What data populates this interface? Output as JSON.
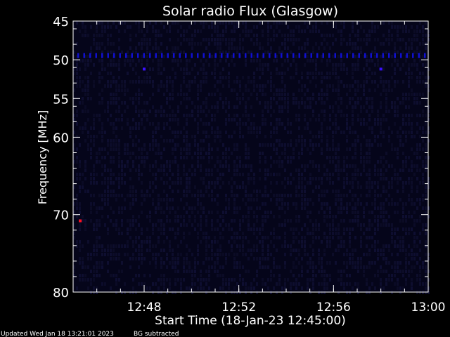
{
  "chart_data": {
    "type": "heatmap",
    "title": "Solar radio Flux (Glasgow)",
    "xlabel": "Start Time (18-Jan-23 12:45:00)",
    "ylabel": "Frequency [MHz]",
    "xlim": [
      "12:45",
      "13:00"
    ],
    "ylim": [
      45,
      80
    ],
    "y_inverted": true,
    "x_ticks": [
      "12:48",
      "12:52",
      "12:56",
      "13:00"
    ],
    "y_ticks": [
      45,
      50,
      55,
      60,
      70,
      80
    ],
    "y_tick_labels": [
      "45",
      "50",
      "55",
      "60",
      "70",
      "80"
    ],
    "background_color": "#05051a",
    "features": [
      {
        "kind": "periodic-band",
        "frequency": 49.5,
        "time_start": "12:45",
        "time_end": "13:00",
        "color": "#1010d0"
      },
      {
        "kind": "spot",
        "time": "12:48",
        "frequency": 51.2,
        "color": "#3a10ff"
      },
      {
        "kind": "spot",
        "time": "12:58",
        "frequency": 51.2,
        "color": "#3a10ff"
      },
      {
        "kind": "spot",
        "time": "12:45.3",
        "frequency": 70.8,
        "color": "#ff1020"
      }
    ]
  },
  "footer": {
    "updated": "Updated Wed Jan 18 13:21:01 2023",
    "note": "BG subtracted"
  }
}
